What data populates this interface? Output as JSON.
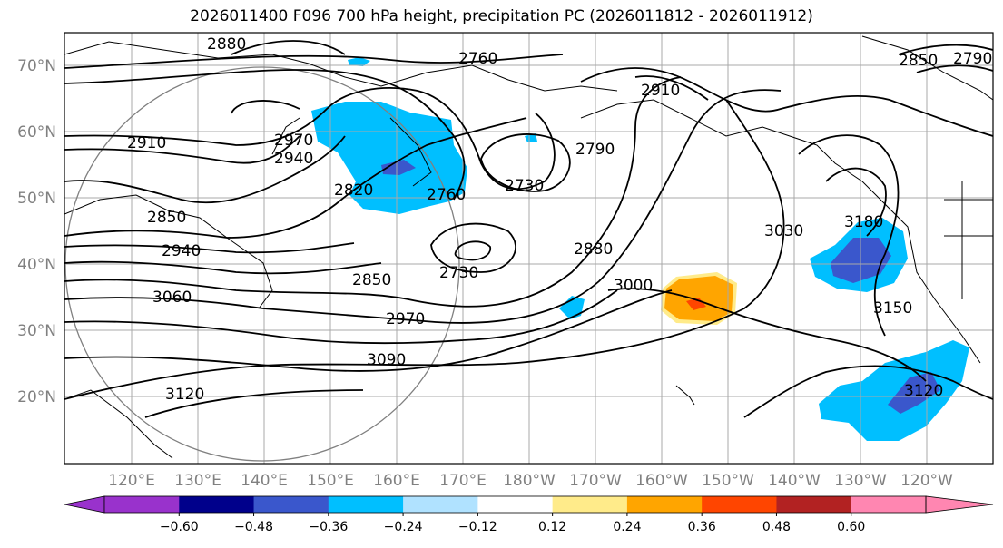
{
  "title": "2026011400 F096 700 hPa height, precipitation PC (2026011812 - 2026011912)",
  "lat_ticks": [
    "70°N",
    "60°N",
    "50°N",
    "40°N",
    "30°N",
    "20°N"
  ],
  "lon_ticks": [
    "120°E",
    "130°E",
    "140°E",
    "150°E",
    "160°E",
    "170°E",
    "180°W",
    "170°W",
    "160°W",
    "150°W",
    "140°W",
    "130°W",
    "120°W"
  ],
  "contour_labels": [
    "2880",
    "2760",
    "2910",
    "2970",
    "2940",
    "2820",
    "2760",
    "2730",
    "2790",
    "2850",
    "2940",
    "3060",
    "2730",
    "2850",
    "2970",
    "2880",
    "3000",
    "3030",
    "3180",
    "3090",
    "3120",
    "3150",
    "3120",
    "2850",
    "2910",
    "2790"
  ],
  "colorbar": {
    "ticks": [
      "−0.60",
      "−0.48",
      "−0.36",
      "−0.24",
      "−0.12",
      "0.12",
      "0.24",
      "0.36",
      "0.48",
      "0.60"
    ],
    "colors": [
      "#9932cc",
      "#00008b",
      "#3a57cc",
      "#00bfff",
      "#b0e2ff",
      "#ffffff",
      "#ffeb8a",
      "#ffa500",
      "#ff4500",
      "#b22222",
      "#ff86b1"
    ]
  },
  "legend_colors": {
    "precip_blue": "#00bfff",
    "precip_dblue": "#3a57cc",
    "precip_orange": "#ffa500",
    "precip_red": "#ff4500",
    "contour": "#000000",
    "grid": "#a9a9a9"
  }
}
